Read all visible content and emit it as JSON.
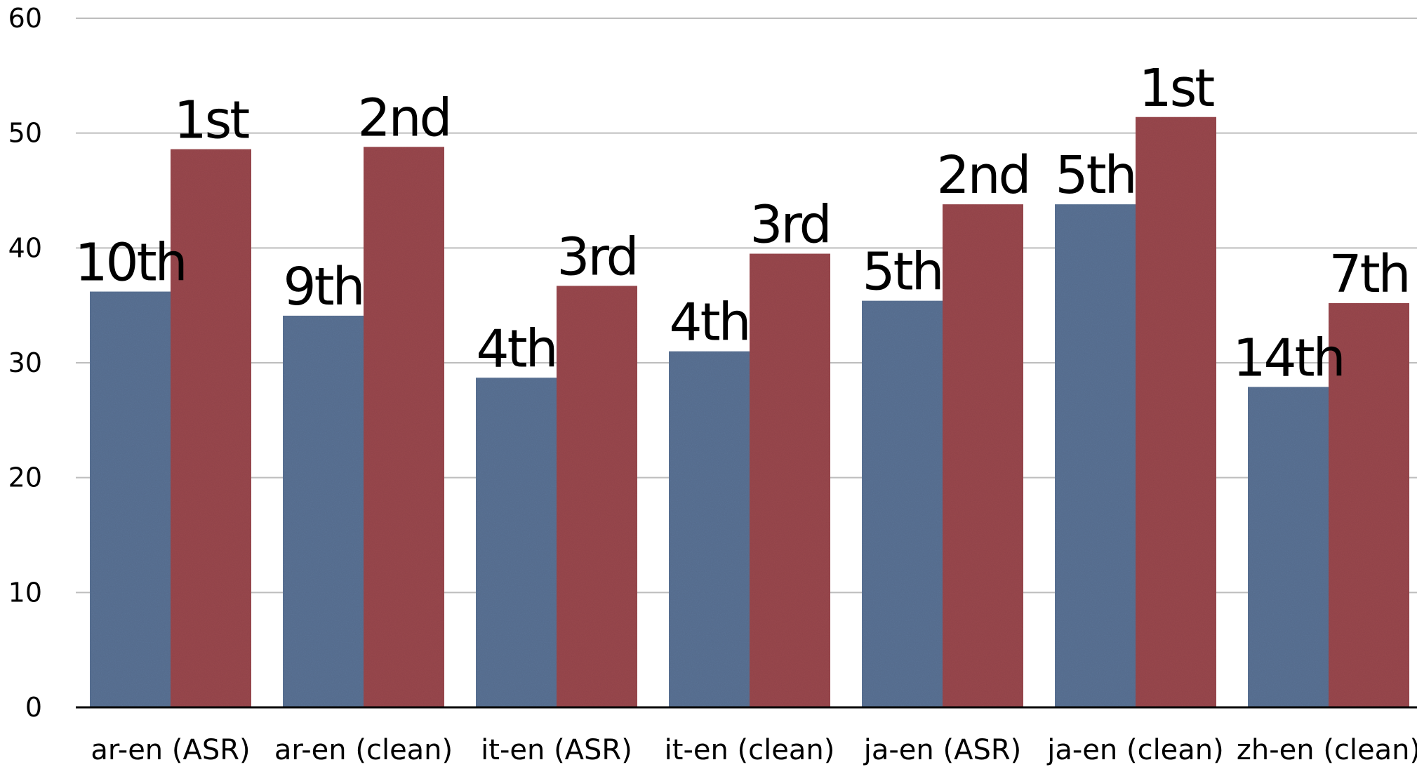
{
  "chart_data": {
    "type": "bar",
    "title": "",
    "xlabel": "",
    "ylabel": "",
    "ylim": [
      0,
      60
    ],
    "yticks": [
      0,
      10,
      20,
      30,
      40,
      50,
      60
    ],
    "grid": true,
    "categories": [
      "ar-en (ASR)",
      "ar-en (clean)",
      "it-en (ASR)",
      "it-en (clean)",
      "ja-en (ASR)",
      "ja-en (clean)",
      "zh-en (clean)"
    ],
    "series": [
      {
        "color": "#5b7396",
        "values": [
          36.2,
          34.1,
          28.7,
          31.0,
          35.4,
          43.8,
          27.9
        ],
        "labels": [
          "10th",
          "9th",
          "4th",
          "4th",
          "5th",
          "5th",
          "14th"
        ]
      },
      {
        "color": "#9b4a4f",
        "values": [
          48.6,
          48.8,
          36.7,
          39.5,
          43.8,
          51.4,
          35.2
        ],
        "labels": [
          "1st",
          "2nd",
          "3rd",
          "3rd",
          "2nd",
          "1st",
          "7th"
        ]
      }
    ]
  }
}
